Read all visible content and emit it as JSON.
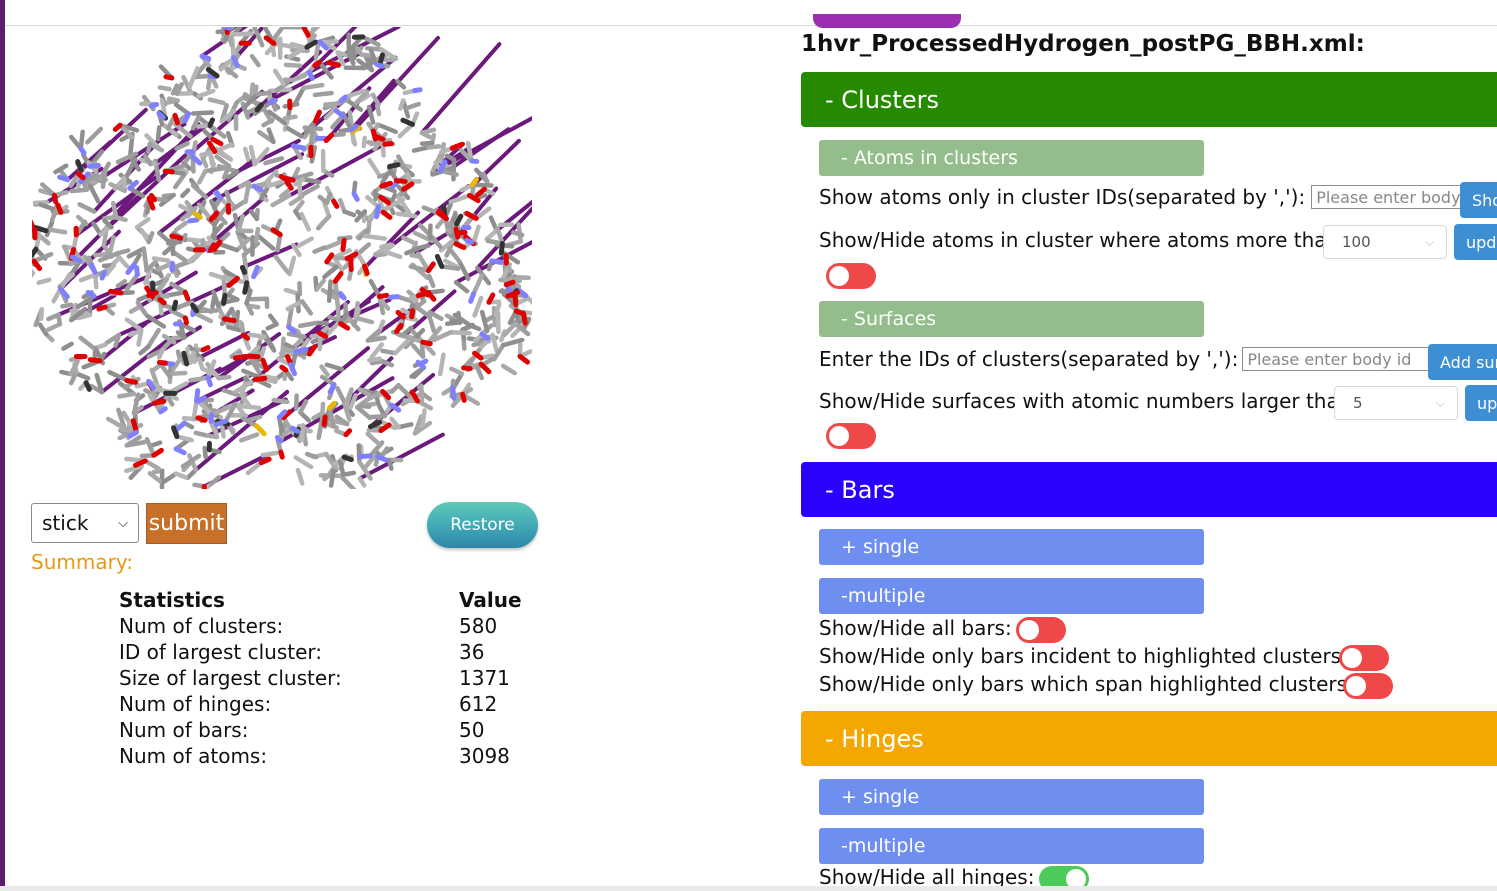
{
  "viewer": {
    "representation": "stick",
    "submit_label": "submit",
    "restore_label": "Restore"
  },
  "summary": {
    "label": "Summary:",
    "headers": [
      "Statistics",
      "Value"
    ],
    "rows": [
      {
        "stat": "Num of clusters:",
        "value": "580"
      },
      {
        "stat": "ID of largest cluster:",
        "value": "36"
      },
      {
        "stat": "Size of largest cluster:",
        "value": "1371"
      },
      {
        "stat": "Num of hinges:",
        "value": "612"
      },
      {
        "stat": "Num of bars:",
        "value": "50"
      },
      {
        "stat": "Num of atoms:",
        "value": "3098"
      }
    ]
  },
  "panel": {
    "file_title": "1hvr_ProcessedHydrogen_postPG_BBH.xml:",
    "clusters": {
      "label": "-  Clusters",
      "color": "#268a00",
      "atoms_sub": "- Atoms in clusters",
      "show_ids_label": "Show atoms only in cluster IDs(separated by ','):",
      "show_ids_placeholder": "Please enter body id",
      "show_button": "Show",
      "hide_more_label": "Show/Hide atoms in cluster where atoms more than",
      "hide_more_value": "100",
      "update_button": "update",
      "surfaces_sub": "- Surfaces",
      "enter_ids_label": "Enter the IDs of clusters(separated by ','):",
      "enter_ids_placeholder": "Please enter body id",
      "add_surface_button": "Add surface",
      "surf_larger_label": "Show/Hide surfaces with atomic numbers larger than",
      "surf_larger_value": "5",
      "surf_update_button": "update"
    },
    "bars": {
      "label": "-  Bars",
      "color": "#2a00ff",
      "single": "+ single",
      "multiple": "-multiple",
      "all_label": "Show/Hide all bars:",
      "incident_label": "Show/Hide only bars incident to highlighted clusters:",
      "span_label": "Show/Hide only bars which span highlighted clusters:"
    },
    "hinges": {
      "label": "-   Hinges",
      "color": "#f4a700",
      "single": "+ single",
      "multiple": "-multiple",
      "all_label": "Show/Hide all hinges:"
    }
  }
}
